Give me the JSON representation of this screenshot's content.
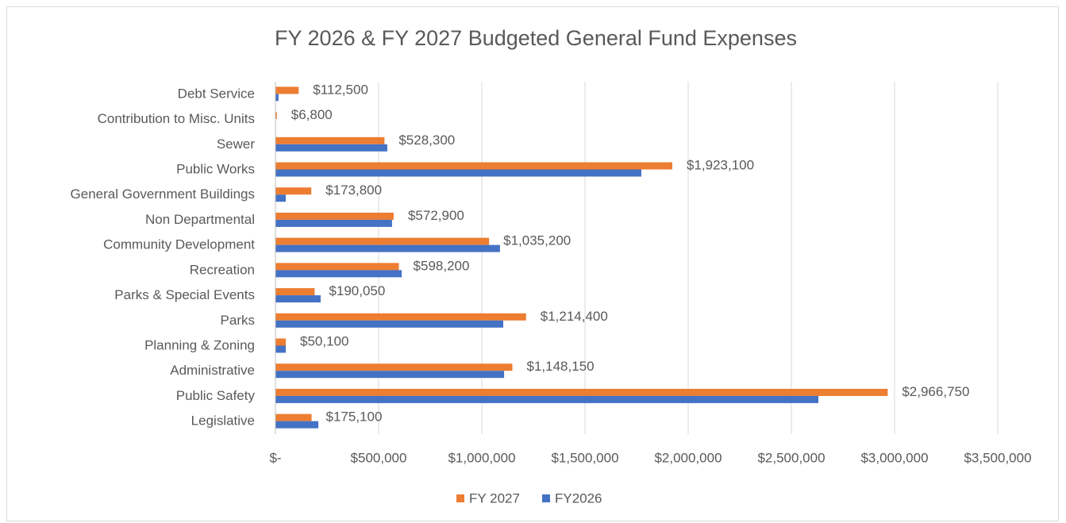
{
  "chart_data": {
    "type": "hbar",
    "title": "FY 2026 & FY 2027 Budgeted General Fund Expenses",
    "categories": [
      "Debt Service",
      "Contribution to Misc. Units",
      "Sewer",
      "Public Works",
      "General Government Buildings",
      "Non Departmental",
      "Community Development",
      "Recreation",
      "Parks & Special Events",
      "Parks",
      "Planning & Zoning",
      "Administrative",
      "Public Safety",
      "Legislative"
    ],
    "series": [
      {
        "name": "FY 2027",
        "color": "#ed7d31",
        "values": [
          112500,
          6800,
          528300,
          1923100,
          173800,
          572900,
          1035200,
          598200,
          190050,
          1214400,
          50100,
          1148150,
          2966750,
          175100
        ],
        "value_labels": [
          "$112,500",
          "$6,800",
          "$528,300",
          "$1,923,100",
          "$173,800",
          "$572,900",
          "$1,035,200",
          "$598,200",
          "$190,050",
          "$1,214,400",
          "$50,100",
          "$1,148,150",
          "$2,966,750",
          "$175,100"
        ]
      },
      {
        "name": "FY2026",
        "color": "#4472c4",
        "values": [
          15000,
          2000,
          542000,
          1773000,
          50000,
          565000,
          1088000,
          612000,
          219000,
          1104000,
          50000,
          1108000,
          2631000,
          208000
        ]
      }
    ],
    "xlim": [
      0,
      3500000
    ],
    "xticks": [
      {
        "value": 0,
        "label": "$-"
      },
      {
        "value": 500000,
        "label": "$500,000"
      },
      {
        "value": 1000000,
        "label": "$1,000,000"
      },
      {
        "value": 1500000,
        "label": "$1,500,000"
      },
      {
        "value": 2000000,
        "label": "$2,000,000"
      },
      {
        "value": 2500000,
        "label": "$2,500,000"
      },
      {
        "value": 3000000,
        "label": "$3,000,000"
      },
      {
        "value": 3500000,
        "label": "$3,500,000"
      }
    ],
    "grid": true,
    "legend": "bottom"
  }
}
